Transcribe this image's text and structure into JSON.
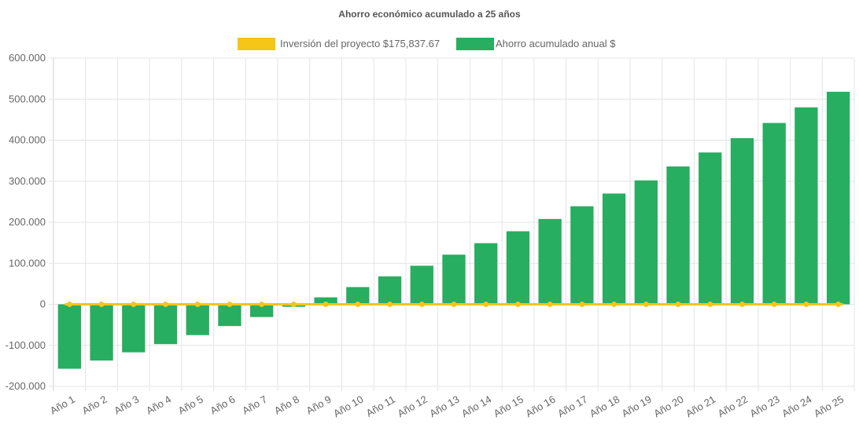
{
  "chart_data": {
    "type": "bar",
    "title": "Ahorro económico acumulado a 25 años",
    "legend_position": "top",
    "grid": true,
    "categories": [
      "Año 1",
      "Año 2",
      "Año 3",
      "Año 4",
      "Año 5",
      "Año 6",
      "Año 7",
      "Año 8",
      "Año 9",
      "Año 10",
      "Año 11",
      "Año 12",
      "Año 13",
      "Año 14",
      "Año 15",
      "Año 16",
      "Año 17",
      "Año 18",
      "Año 19",
      "Año 20",
      "Año 21",
      "Año 22",
      "Año 23",
      "Año 24",
      "Año 25"
    ],
    "ylim": [
      -200000,
      600000
    ],
    "y_ticks": [
      600000,
      500000,
      400000,
      300000,
      200000,
      100000,
      0,
      -100000,
      -200000
    ],
    "y_tick_labels": [
      "600.000",
      "500.000",
      "400.000",
      "300.000",
      "200.000",
      "100.000",
      "0",
      "-100.000",
      "-200.000"
    ],
    "series": [
      {
        "name": "Inversión del proyecto $175,837.67",
        "type": "line",
        "color": "#f5c518",
        "values": [
          0,
          0,
          0,
          0,
          0,
          0,
          0,
          0,
          0,
          0,
          0,
          0,
          0,
          0,
          0,
          0,
          0,
          0,
          0,
          0,
          0,
          0,
          0,
          0,
          0
        ]
      },
      {
        "name": "Ahorro acumulado anual $",
        "type": "bar",
        "color": "#27ae60",
        "values": [
          -157000,
          -137000,
          -117000,
          -97000,
          -75000,
          -53000,
          -31000,
          -6000,
          17000,
          42000,
          68000,
          94000,
          121000,
          149000,
          178000,
          208000,
          239000,
          270000,
          302000,
          336000,
          370000,
          405000,
          442000,
          480000,
          518000
        ]
      }
    ]
  }
}
